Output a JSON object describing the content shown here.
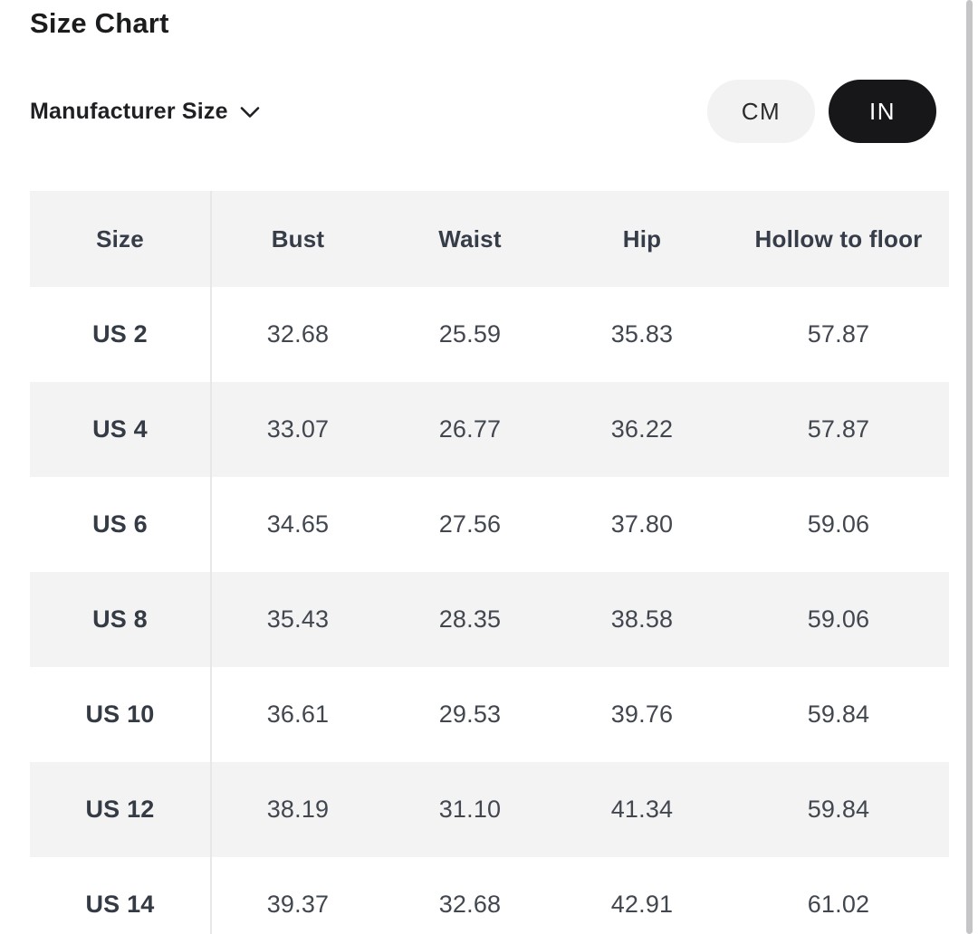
{
  "page": {
    "title": "Size Chart",
    "selector": {
      "label": "Manufacturer Size"
    },
    "unit_toggle": {
      "options": [
        {
          "label": "CM",
          "selected": false
        },
        {
          "label": "IN",
          "selected": true
        }
      ],
      "selected_bg": "#17171a",
      "selected_text": "#ffffff",
      "unselected_bg": "#f2f2f3",
      "unselected_text": "#2a2b2d"
    }
  },
  "table": {
    "columns": [
      "Size",
      "Bust",
      "Waist",
      "Hip",
      "Hollow to floor"
    ],
    "unit_shown": "IN",
    "rows": [
      {
        "size": "US 2",
        "values": [
          "32.68",
          "25.59",
          "35.83",
          "57.87"
        ]
      },
      {
        "size": "US 4",
        "values": [
          "33.07",
          "26.77",
          "36.22",
          "57.87"
        ]
      },
      {
        "size": "US 6",
        "values": [
          "34.65",
          "27.56",
          "37.80",
          "59.06"
        ]
      },
      {
        "size": "US 8",
        "values": [
          "35.43",
          "28.35",
          "38.58",
          "59.06"
        ]
      },
      {
        "size": "US 10",
        "values": [
          "36.61",
          "29.53",
          "39.76",
          "59.84"
        ]
      },
      {
        "size": "US 12",
        "values": [
          "38.19",
          "31.10",
          "41.34",
          "59.84"
        ]
      },
      {
        "size": "US 14",
        "values": [
          "39.37",
          "32.68",
          "42.91",
          "61.02"
        ]
      }
    ],
    "colors": {
      "shaded_row_bg": "#f3f3f4",
      "divider": "#e7e7e8",
      "header_text": "#363d48",
      "value_text": "#42474f"
    }
  }
}
